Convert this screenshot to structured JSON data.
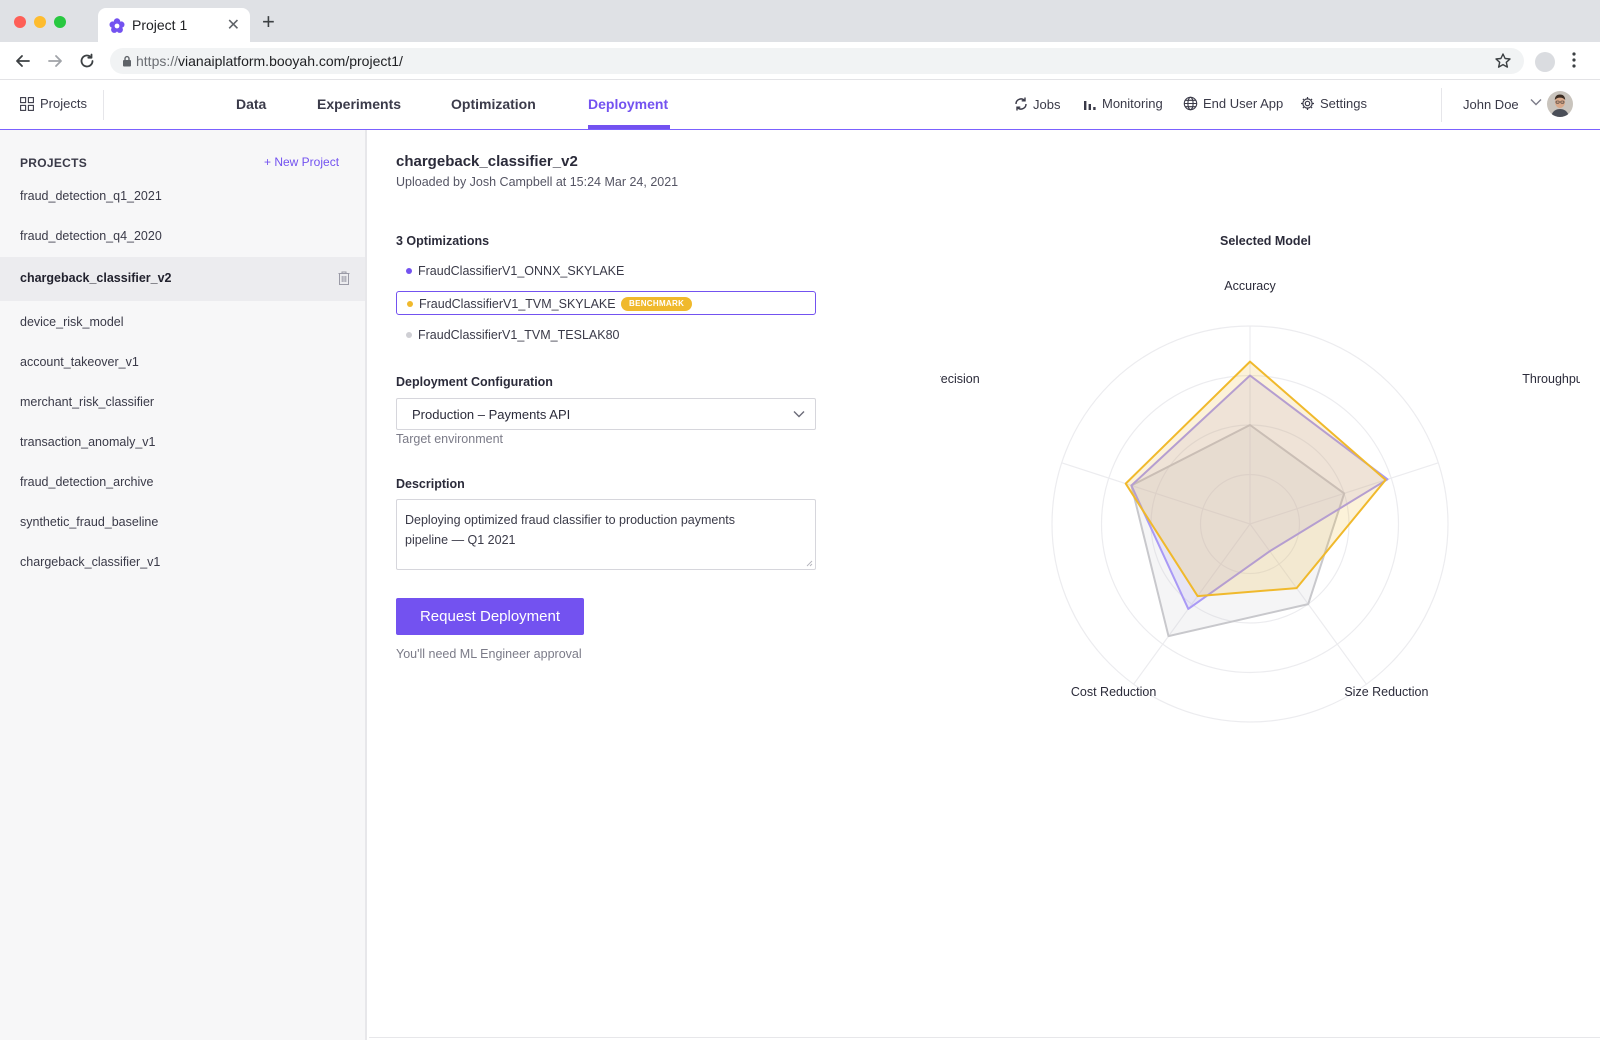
{
  "browser": {
    "tab_title": "Project 1",
    "url_protocol": "https://",
    "url_rest": "vianaiplatform.booyah.com/project1/"
  },
  "header": {
    "projects_label": "Projects",
    "tabs": [
      {
        "label": "Data"
      },
      {
        "label": "Experiments"
      },
      {
        "label": "Optimization"
      },
      {
        "label": "Deployment",
        "active": true
      }
    ],
    "utilities": [
      {
        "label": "Jobs",
        "icon": "refresh-icon"
      },
      {
        "label": "Monitoring",
        "icon": "bar-chart-icon"
      },
      {
        "label": "End User App",
        "icon": "globe-icon"
      },
      {
        "label": "Settings",
        "icon": "gear-icon"
      }
    ],
    "user_name": "John Doe"
  },
  "sidebar": {
    "title": "PROJECTS",
    "new_project_label": "+ New Project",
    "items": [
      {
        "label": "fraud_detection_q1_2021"
      },
      {
        "label": "fraud_detection_q4_2020"
      },
      {
        "label": "chargeback_classifier_v2",
        "active": true
      },
      {
        "label": "device_risk_model"
      },
      {
        "label": "account_takeover_v1"
      },
      {
        "label": "merchant_risk_classifier"
      },
      {
        "label": "transaction_anomaly_v1"
      },
      {
        "label": "fraud_detection_archive"
      },
      {
        "label": "synthetic_fraud_baseline"
      },
      {
        "label": "chargeback_classifier_v1"
      }
    ]
  },
  "main": {
    "title": "chargeback_classifier_v2",
    "subtitle": "Uploaded by Josh Campbell at 15:24 Mar 24, 2021",
    "optimizations_label": "3 Optimizations",
    "optimizations": [
      {
        "name": "FraudClassifierV1_ONNX_SKYLAKE",
        "color": "#7352f0"
      },
      {
        "name": "FraudClassifierV1_TVM_SKYLAKE",
        "color": "#f0b92c",
        "badge": "BENCHMARK",
        "selected": true
      },
      {
        "name": "FraudClassifierV1_TVM_TESLAK80",
        "color": "#cfcfd4"
      }
    ],
    "deployment_config_label": "Deployment Configuration",
    "deployment_config_value": "Production – Payments API",
    "deployment_config_helper": "Target environment",
    "description_label": "Description",
    "description_text": "Deploying optimized fraud classifier to production payments pipeline — Q1 2021",
    "request_button": "Request Deployment",
    "approval_note": "You'll need ML Engineer approval"
  },
  "chart_data": {
    "type": "radar",
    "title": "Selected Model",
    "axes": [
      "Accuracy",
      "Throughput",
      "Size Reduction",
      "Cost Reduction",
      "Precision"
    ],
    "range": [
      0,
      1
    ],
    "series": [
      {
        "color": "#f0b92c",
        "values": [
          0.82,
          0.72,
          0.4,
          0.45,
          0.66
        ]
      },
      {
        "color": "#a999f5",
        "values": [
          0.75,
          0.73,
          0.17,
          0.53,
          0.63
        ]
      },
      {
        "color": "#c8c8cc",
        "values": [
          0.5,
          0.5,
          0.5,
          0.7,
          0.63
        ]
      }
    ]
  },
  "colors": {
    "accent": "#7352f0",
    "benchmark": "#f0b92c"
  }
}
